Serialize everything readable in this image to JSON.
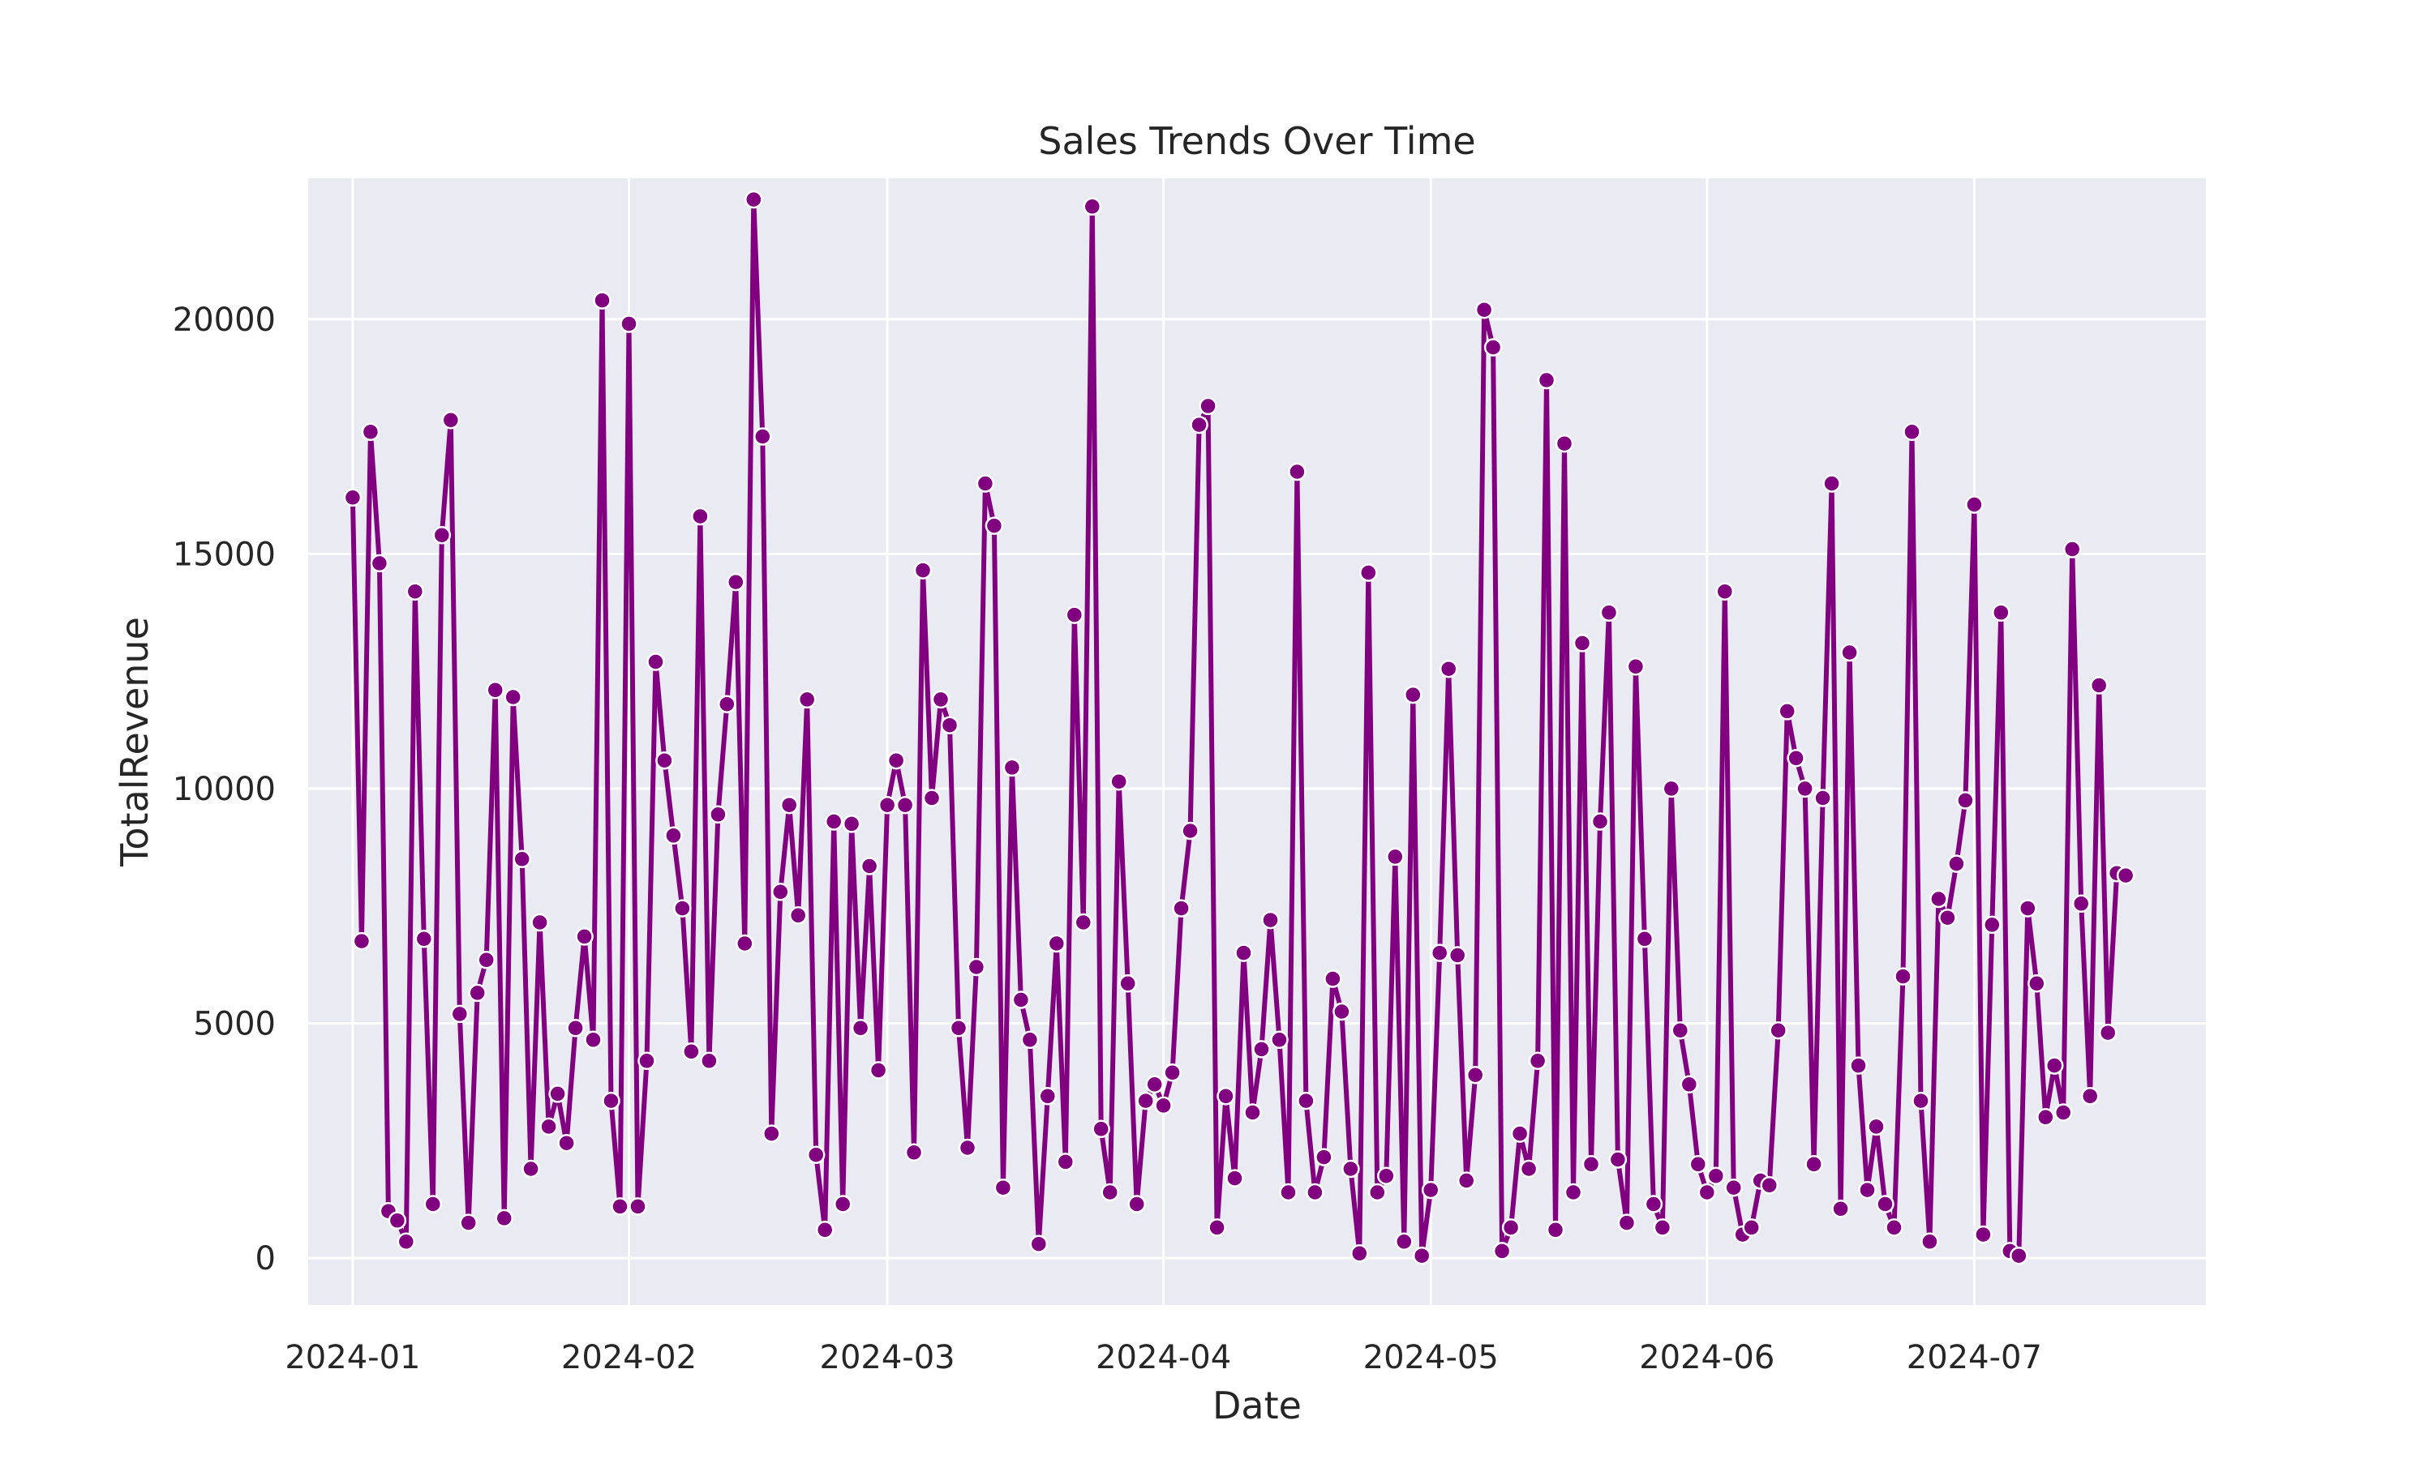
{
  "chart_data": {
    "type": "line",
    "title": "Sales Trends Over Time",
    "xlabel": "Date",
    "ylabel": "TotalRevenue",
    "grid": true,
    "ylim": [
      -1000,
      23000
    ],
    "xlim": [
      "2023-12-27",
      "2024-07-27"
    ],
    "yticks": [
      0,
      5000,
      10000,
      15000,
      20000
    ],
    "xticks": [
      {
        "date": "2024-01-01",
        "label": "2024-01"
      },
      {
        "date": "2024-02-01",
        "label": "2024-02"
      },
      {
        "date": "2024-03-01",
        "label": "2024-03"
      },
      {
        "date": "2024-04-01",
        "label": "2024-04"
      },
      {
        "date": "2024-05-01",
        "label": "2024-05"
      },
      {
        "date": "2024-06-01",
        "label": "2024-06"
      },
      {
        "date": "2024-07-01",
        "label": "2024-07"
      }
    ],
    "colors": {
      "series": "#800080",
      "background": "#eaeaf2",
      "grid": "#ffffff"
    },
    "series": [
      {
        "start_date": "2024-01-01",
        "interval_days": 1,
        "values": [
          16200,
          6750,
          17600,
          14800,
          1000,
          800,
          350,
          14200,
          6800,
          1150,
          15400,
          17850,
          5200,
          750,
          5650,
          6350,
          12100,
          850,
          11950,
          8500,
          1900,
          7150,
          2800,
          3500,
          2450,
          4900,
          6850,
          4650,
          20400,
          3350,
          1100,
          19900,
          1100,
          4200,
          12700,
          10600,
          9000,
          7450,
          4400,
          15800,
          4200,
          9450,
          11800,
          14400,
          6700,
          22550,
          17500,
          2650,
          7800,
          9650,
          7300,
          11900,
          2200,
          600,
          9300,
          1150,
          9250,
          4900,
          8350,
          4000,
          9650,
          10600,
          9650,
          2250,
          14650,
          9800,
          11900,
          11350,
          4900,
          2350,
          6200,
          16500,
          15600,
          1500,
          10450,
          5500,
          4650,
          300,
          3450,
          6700,
          2050,
          13700,
          7150,
          22400,
          2750,
          1400,
          10150,
          5850,
          1150,
          3350,
          3700,
          3250,
          3950,
          7450,
          9100,
          17750,
          18150,
          650,
          3450,
          1700,
          6500,
          3100,
          4450,
          7200,
          4650,
          1400,
          16750,
          3350,
          1400,
          2150,
          5950,
          5250,
          1900,
          100,
          14600,
          1400,
          1750,
          8550,
          350,
          12000,
          50,
          1450,
          6500,
          12550,
          6450,
          1650,
          3900,
          20200,
          19400,
          150,
          650,
          2650,
          1900,
          4200,
          18700,
          600,
          17350,
          1400,
          13100,
          2000,
          9300,
          13750,
          2100,
          750,
          12600,
          6800,
          1150,
          650,
          10000,
          4850,
          3700,
          2000,
          1400,
          1750,
          14200,
          1500,
          500,
          650,
          1650,
          1550,
          4850,
          11650,
          10650,
          10000,
          2000,
          9800,
          16500,
          1050,
          12900,
          4100,
          1450,
          2800,
          1150,
          650,
          6000,
          17600,
          3350,
          350,
          7650,
          7250,
          8400,
          9750,
          16050,
          500,
          7100,
          13750,
          150,
          50,
          7450,
          5850,
          3000,
          4100,
          3100,
          15100,
          7550,
          3450,
          12200,
          4800,
          8200,
          8150
        ]
      }
    ]
  }
}
